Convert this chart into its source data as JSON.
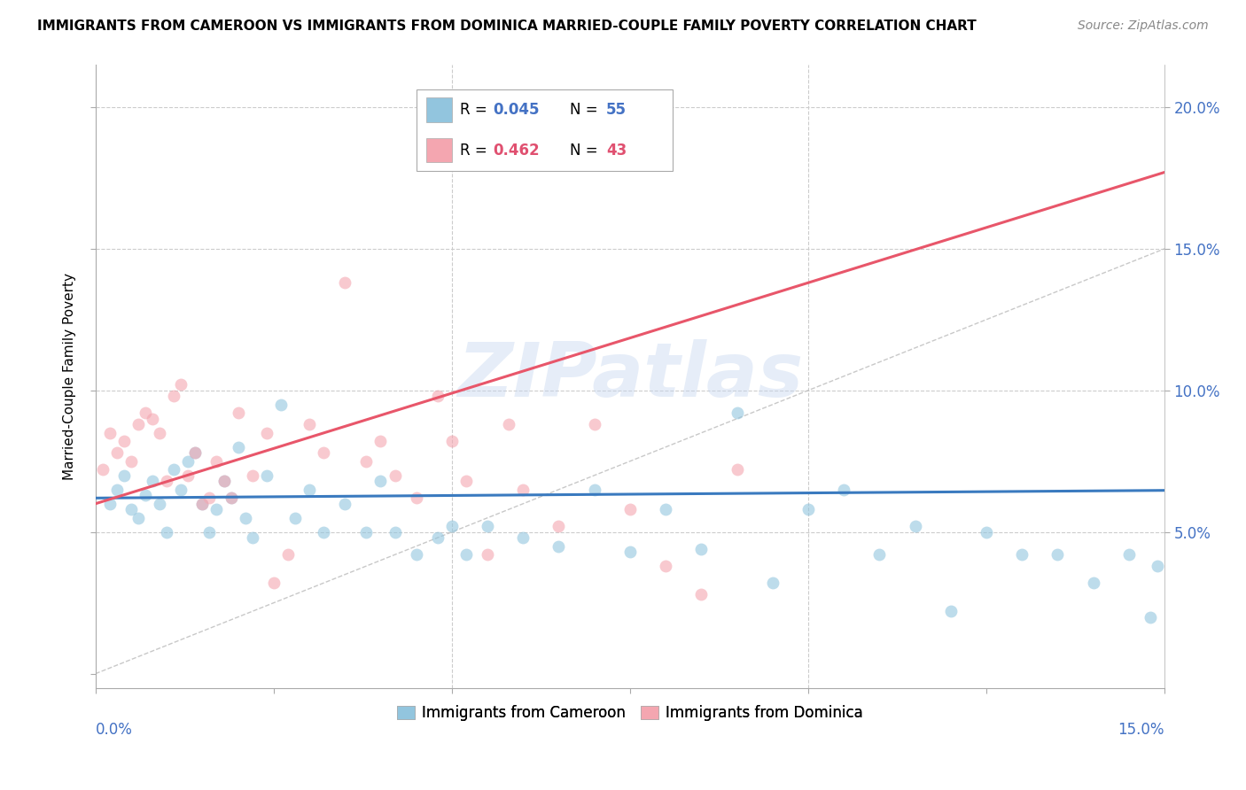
{
  "title": "IMMIGRANTS FROM CAMEROON VS IMMIGRANTS FROM DOMINICA MARRIED-COUPLE FAMILY POVERTY CORRELATION CHART",
  "source": "Source: ZipAtlas.com",
  "ylabel": "Married-Couple Family Poverty",
  "xlim": [
    0.0,
    0.15
  ],
  "ylim": [
    -0.005,
    0.215
  ],
  "watermark": "ZIPatlas",
  "blue_color": "#92c5de",
  "pink_color": "#f4a6b0",
  "blue_line_color": "#3a7abf",
  "pink_line_color": "#e8566a",
  "diag_color": "#bbbbbb",
  "label_blue": "Immigrants from Cameroon",
  "label_pink": "Immigrants from Dominica",
  "blue_intercept": 0.062,
  "blue_slope": 0.018,
  "pink_intercept": 0.06,
  "pink_slope": 0.78,
  "cameroon_x": [
    0.002,
    0.003,
    0.004,
    0.005,
    0.006,
    0.007,
    0.008,
    0.009,
    0.01,
    0.011,
    0.012,
    0.013,
    0.014,
    0.015,
    0.016,
    0.017,
    0.018,
    0.019,
    0.02,
    0.021,
    0.022,
    0.024,
    0.026,
    0.028,
    0.03,
    0.032,
    0.035,
    0.038,
    0.04,
    0.042,
    0.045,
    0.048,
    0.05,
    0.052,
    0.055,
    0.06,
    0.065,
    0.07,
    0.075,
    0.08,
    0.085,
    0.09,
    0.095,
    0.1,
    0.105,
    0.11,
    0.115,
    0.12,
    0.125,
    0.13,
    0.135,
    0.14,
    0.145,
    0.148,
    0.149
  ],
  "cameroon_y": [
    0.06,
    0.065,
    0.07,
    0.058,
    0.055,
    0.063,
    0.068,
    0.06,
    0.05,
    0.072,
    0.065,
    0.075,
    0.078,
    0.06,
    0.05,
    0.058,
    0.068,
    0.062,
    0.08,
    0.055,
    0.048,
    0.07,
    0.095,
    0.055,
    0.065,
    0.05,
    0.06,
    0.05,
    0.068,
    0.05,
    0.042,
    0.048,
    0.052,
    0.042,
    0.052,
    0.048,
    0.045,
    0.065,
    0.043,
    0.058,
    0.044,
    0.092,
    0.032,
    0.058,
    0.065,
    0.042,
    0.052,
    0.022,
    0.05,
    0.042,
    0.042,
    0.032,
    0.042,
    0.02,
    0.038
  ],
  "dominica_x": [
    0.001,
    0.002,
    0.003,
    0.004,
    0.005,
    0.006,
    0.007,
    0.008,
    0.009,
    0.01,
    0.011,
    0.012,
    0.013,
    0.014,
    0.015,
    0.016,
    0.017,
    0.018,
    0.019,
    0.02,
    0.022,
    0.024,
    0.025,
    0.027,
    0.03,
    0.032,
    0.035,
    0.038,
    0.04,
    0.042,
    0.045,
    0.048,
    0.05,
    0.052,
    0.055,
    0.058,
    0.06,
    0.065,
    0.07,
    0.075,
    0.08,
    0.085,
    0.09
  ],
  "dominica_y": [
    0.072,
    0.085,
    0.078,
    0.082,
    0.075,
    0.088,
    0.092,
    0.09,
    0.085,
    0.068,
    0.098,
    0.102,
    0.07,
    0.078,
    0.06,
    0.062,
    0.075,
    0.068,
    0.062,
    0.092,
    0.07,
    0.085,
    0.032,
    0.042,
    0.088,
    0.078,
    0.138,
    0.075,
    0.082,
    0.07,
    0.062,
    0.098,
    0.082,
    0.068,
    0.042,
    0.088,
    0.065,
    0.052,
    0.088,
    0.058,
    0.038,
    0.028,
    0.072
  ]
}
